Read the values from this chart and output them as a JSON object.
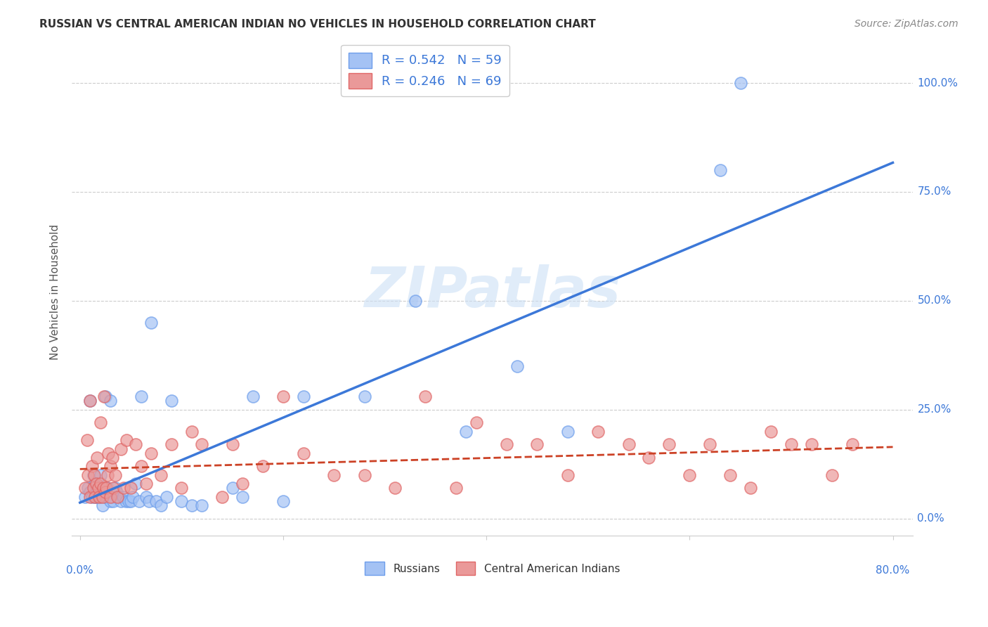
{
  "title": "RUSSIAN VS CENTRAL AMERICAN INDIAN NO VEHICLES IN HOUSEHOLD CORRELATION CHART",
  "source": "Source: ZipAtlas.com",
  "ylabel": "No Vehicles in Household",
  "yticks": [
    "0.0%",
    "25.0%",
    "50.0%",
    "75.0%",
    "100.0%"
  ],
  "ytick_vals": [
    0.0,
    0.25,
    0.5,
    0.75,
    1.0
  ],
  "xlim": [
    0.0,
    0.8
  ],
  "ylim": [
    0.0,
    1.05
  ],
  "russian_color": "#a4c2f4",
  "russian_color_edge": "#6d9eeb",
  "russian_line_color": "#3c78d8",
  "ca_indian_color": "#ea9999",
  "ca_indian_edge": "#e06666",
  "ca_indian_line_color": "#cc4125",
  "R_russian": 0.542,
  "N_russian": 59,
  "R_ca_indian": 0.246,
  "N_ca_indian": 69,
  "watermark": "ZIPatlas",
  "legend_label_russian": "R = 0.542   N = 59",
  "legend_label_ca": "R = 0.246   N = 69",
  "legend_bottom_russian": "Russians",
  "legend_bottom_ca": "Central American Indians",
  "russian_x": [
    0.005,
    0.008,
    0.01,
    0.01,
    0.012,
    0.013,
    0.015,
    0.015,
    0.016,
    0.017,
    0.018,
    0.019,
    0.02,
    0.02,
    0.022,
    0.023,
    0.025,
    0.025,
    0.026,
    0.027,
    0.028,
    0.03,
    0.03,
    0.032,
    0.033,
    0.035,
    0.036,
    0.038,
    0.04,
    0.042,
    0.045,
    0.048,
    0.05,
    0.052,
    0.055,
    0.058,
    0.06,
    0.065,
    0.068,
    0.07,
    0.075,
    0.08,
    0.085,
    0.09,
    0.1,
    0.11,
    0.12,
    0.15,
    0.16,
    0.17,
    0.2,
    0.22,
    0.28,
    0.33,
    0.38,
    0.43,
    0.48,
    0.63,
    0.65
  ],
  "russian_y": [
    0.05,
    0.07,
    0.06,
    0.27,
    0.05,
    0.1,
    0.08,
    0.05,
    0.05,
    0.06,
    0.05,
    0.05,
    0.05,
    0.1,
    0.03,
    0.06,
    0.05,
    0.28,
    0.05,
    0.07,
    0.06,
    0.04,
    0.27,
    0.05,
    0.04,
    0.07,
    0.06,
    0.05,
    0.04,
    0.05,
    0.04,
    0.04,
    0.04,
    0.05,
    0.08,
    0.04,
    0.28,
    0.05,
    0.04,
    0.45,
    0.04,
    0.03,
    0.05,
    0.27,
    0.04,
    0.03,
    0.03,
    0.07,
    0.05,
    0.28,
    0.04,
    0.28,
    0.28,
    0.5,
    0.2,
    0.35,
    0.2,
    0.8,
    1.0
  ],
  "ca_indian_x": [
    0.005,
    0.007,
    0.008,
    0.01,
    0.01,
    0.012,
    0.013,
    0.014,
    0.015,
    0.016,
    0.017,
    0.018,
    0.019,
    0.02,
    0.02,
    0.022,
    0.023,
    0.024,
    0.025,
    0.026,
    0.027,
    0.028,
    0.03,
    0.03,
    0.032,
    0.033,
    0.035,
    0.037,
    0.04,
    0.043,
    0.046,
    0.05,
    0.055,
    0.06,
    0.065,
    0.07,
    0.08,
    0.09,
    0.1,
    0.11,
    0.12,
    0.14,
    0.15,
    0.16,
    0.18,
    0.2,
    0.22,
    0.25,
    0.28,
    0.31,
    0.34,
    0.37,
    0.39,
    0.42,
    0.45,
    0.48,
    0.51,
    0.54,
    0.56,
    0.58,
    0.6,
    0.62,
    0.64,
    0.66,
    0.68,
    0.7,
    0.72,
    0.74,
    0.76
  ],
  "ca_indian_y": [
    0.07,
    0.18,
    0.1,
    0.05,
    0.27,
    0.12,
    0.07,
    0.1,
    0.05,
    0.08,
    0.14,
    0.07,
    0.05,
    0.08,
    0.22,
    0.05,
    0.07,
    0.28,
    0.06,
    0.07,
    0.1,
    0.15,
    0.05,
    0.12,
    0.14,
    0.07,
    0.1,
    0.05,
    0.16,
    0.07,
    0.18,
    0.07,
    0.17,
    0.12,
    0.08,
    0.15,
    0.1,
    0.17,
    0.07,
    0.2,
    0.17,
    0.05,
    0.17,
    0.08,
    0.12,
    0.28,
    0.15,
    0.1,
    0.1,
    0.07,
    0.28,
    0.07,
    0.22,
    0.17,
    0.17,
    0.1,
    0.2,
    0.17,
    0.14,
    0.17,
    0.1,
    0.17,
    0.1,
    0.07,
    0.2,
    0.17,
    0.17,
    0.1,
    0.17
  ]
}
